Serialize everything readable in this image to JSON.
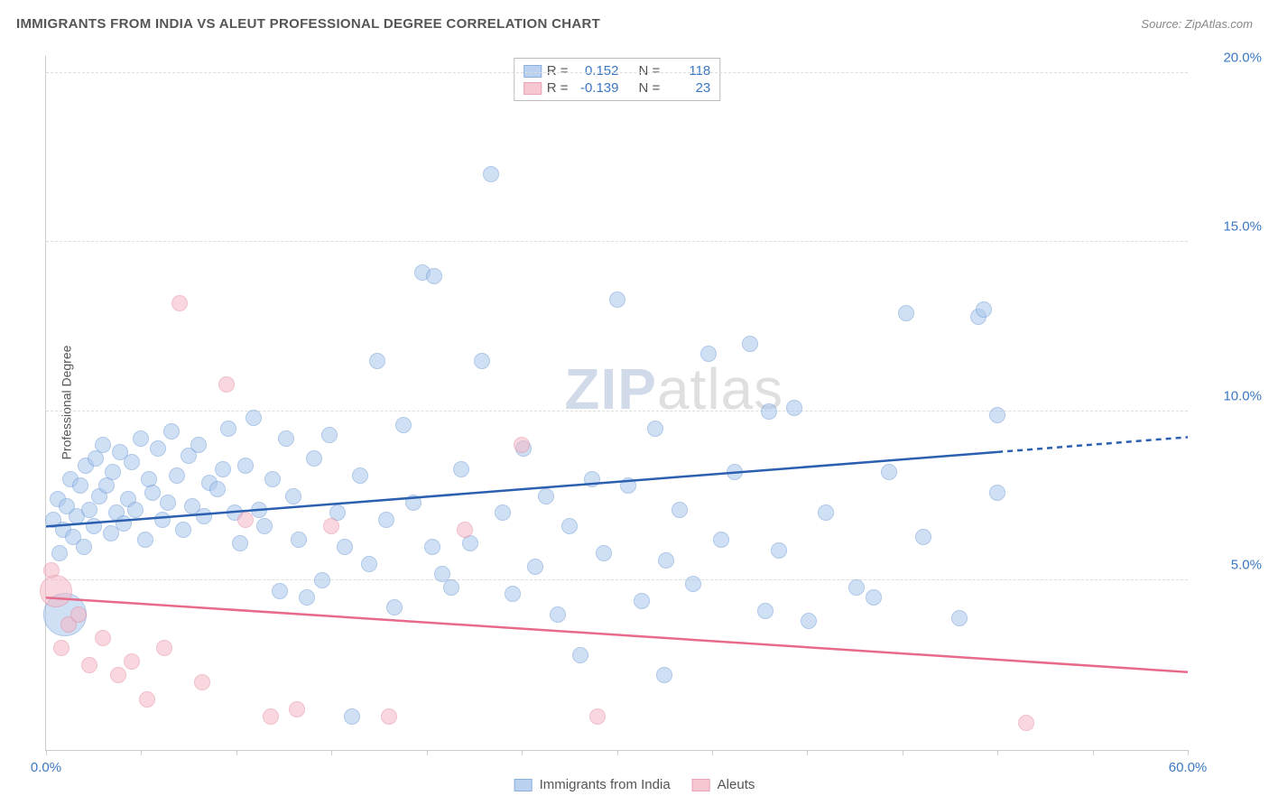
{
  "title": "IMMIGRANTS FROM INDIA VS ALEUT PROFESSIONAL DEGREE CORRELATION CHART",
  "source_label": "Source:",
  "source_name": "ZipAtlas.com",
  "y_axis_label": "Professional Degree",
  "watermark_zip": "ZIP",
  "watermark_atlas": "atlas",
  "chart": {
    "type": "scatter",
    "xlim": [
      0,
      60
    ],
    "ylim": [
      0,
      20.5
    ],
    "x_ticks": [
      0,
      5,
      10,
      15,
      20,
      25,
      30,
      35,
      40,
      45,
      50,
      55,
      60
    ],
    "x_tick_labels": {
      "0": "0.0%",
      "60": "60.0%"
    },
    "y_ticks": [
      5,
      10,
      15,
      20
    ],
    "y_tick_labels": {
      "5": "5.0%",
      "10": "10.0%",
      "15": "15.0%",
      "20": "20.0%"
    },
    "background_color": "#ffffff",
    "grid_color": "#dddddd",
    "axis_color": "#cccccc",
    "tick_label_color": "#3b78c4",
    "axis_label_color": "#555555",
    "series": [
      {
        "key": "india",
        "label": "Immigrants from India",
        "fill": "#a9c7ec",
        "fill_opacity": 0.55,
        "stroke": "#6e9bd6",
        "line_color": "#2b5fb0",
        "R": "0.152",
        "N": "118",
        "marker_radius": 9,
        "trend": {
          "x0": 0,
          "y0": 6.6,
          "x1": 50,
          "y1": 8.8,
          "x_dash_to": 60
        },
        "points": [
          [
            0.4,
            6.8
          ],
          [
            0.6,
            7.4
          ],
          [
            0.7,
            5.8
          ],
          [
            0.9,
            6.5
          ],
          [
            1.0,
            4.0,
            24
          ],
          [
            1.1,
            7.2
          ],
          [
            1.3,
            8.0
          ],
          [
            1.4,
            6.3
          ],
          [
            1.6,
            6.9
          ],
          [
            1.8,
            7.8
          ],
          [
            2.0,
            6.0
          ],
          [
            2.1,
            8.4
          ],
          [
            2.3,
            7.1
          ],
          [
            2.5,
            6.6
          ],
          [
            2.6,
            8.6
          ],
          [
            2.8,
            7.5
          ],
          [
            3.0,
            9.0
          ],
          [
            3.2,
            7.8
          ],
          [
            3.4,
            6.4
          ],
          [
            3.5,
            8.2
          ],
          [
            3.7,
            7.0
          ],
          [
            3.9,
            8.8
          ],
          [
            4.1,
            6.7
          ],
          [
            4.3,
            7.4
          ],
          [
            4.5,
            8.5
          ],
          [
            4.7,
            7.1
          ],
          [
            5.0,
            9.2
          ],
          [
            5.2,
            6.2
          ],
          [
            5.4,
            8.0
          ],
          [
            5.6,
            7.6
          ],
          [
            5.9,
            8.9
          ],
          [
            6.1,
            6.8
          ],
          [
            6.4,
            7.3
          ],
          [
            6.6,
            9.4
          ],
          [
            6.9,
            8.1
          ],
          [
            7.2,
            6.5
          ],
          [
            7.5,
            8.7
          ],
          [
            7.7,
            7.2
          ],
          [
            8.0,
            9.0
          ],
          [
            8.3,
            6.9
          ],
          [
            8.6,
            7.9
          ],
          [
            9.0,
            7.7
          ],
          [
            9.3,
            8.3
          ],
          [
            9.6,
            9.5
          ],
          [
            9.9,
            7.0
          ],
          [
            10.2,
            6.1
          ],
          [
            10.5,
            8.4
          ],
          [
            10.9,
            9.8
          ],
          [
            11.2,
            7.1
          ],
          [
            11.5,
            6.6
          ],
          [
            11.9,
            8.0
          ],
          [
            12.3,
            4.7
          ],
          [
            12.6,
            9.2
          ],
          [
            13.0,
            7.5
          ],
          [
            13.3,
            6.2
          ],
          [
            13.7,
            4.5
          ],
          [
            14.1,
            8.6
          ],
          [
            14.5,
            5.0
          ],
          [
            14.9,
            9.3
          ],
          [
            15.3,
            7.0
          ],
          [
            15.7,
            6.0
          ],
          [
            16.1,
            1.0
          ],
          [
            16.5,
            8.1
          ],
          [
            17.0,
            5.5
          ],
          [
            17.4,
            11.5
          ],
          [
            17.9,
            6.8
          ],
          [
            18.3,
            4.2
          ],
          [
            18.8,
            9.6
          ],
          [
            19.3,
            7.3
          ],
          [
            19.8,
            14.1
          ],
          [
            20.3,
            6.0
          ],
          [
            20.4,
            14.0
          ],
          [
            20.8,
            5.2
          ],
          [
            21.3,
            4.8
          ],
          [
            21.8,
            8.3
          ],
          [
            22.3,
            6.1
          ],
          [
            22.9,
            11.5
          ],
          [
            23.4,
            17.0
          ],
          [
            24.0,
            7.0
          ],
          [
            24.5,
            4.6
          ],
          [
            25.1,
            8.9
          ],
          [
            25.7,
            5.4
          ],
          [
            26.3,
            7.5
          ],
          [
            26.9,
            4.0
          ],
          [
            27.5,
            6.6
          ],
          [
            28.1,
            2.8
          ],
          [
            28.7,
            8.0
          ],
          [
            29.3,
            5.8
          ],
          [
            30.0,
            13.3
          ],
          [
            30.6,
            7.8
          ],
          [
            31.3,
            4.4
          ],
          [
            32.0,
            9.5
          ],
          [
            32.6,
            5.6
          ],
          [
            33.3,
            7.1
          ],
          [
            34.0,
            4.9
          ],
          [
            34.8,
            11.7
          ],
          [
            35.5,
            6.2
          ],
          [
            36.2,
            8.2
          ],
          [
            37.0,
            12.0
          ],
          [
            37.8,
            4.1
          ],
          [
            38.5,
            5.9
          ],
          [
            39.3,
            10.1
          ],
          [
            40.1,
            3.8
          ],
          [
            32.5,
            2.2
          ],
          [
            41.0,
            7.0
          ],
          [
            42.6,
            4.8
          ],
          [
            43.5,
            4.5
          ],
          [
            44.3,
            8.2
          ],
          [
            45.2,
            12.9
          ],
          [
            46.1,
            6.3
          ],
          [
            38.0,
            10.0
          ],
          [
            48.0,
            3.9
          ],
          [
            49.0,
            12.8
          ],
          [
            49.3,
            13.0
          ],
          [
            50.0,
            9.9
          ],
          [
            50.0,
            7.6
          ]
        ]
      },
      {
        "key": "aleuts",
        "label": "Aleuts",
        "fill": "#f4b8c6",
        "fill_opacity": 0.55,
        "stroke": "#e48aa2",
        "line_color": "#e86a8b",
        "R": "-0.139",
        "N": "23",
        "marker_radius": 9,
        "trend": {
          "x0": 0,
          "y0": 4.5,
          "x1": 60,
          "y1": 2.3
        },
        "points": [
          [
            0.3,
            5.3
          ],
          [
            0.5,
            4.7,
            18
          ],
          [
            0.8,
            3.0
          ],
          [
            1.2,
            3.7
          ],
          [
            1.7,
            4.0
          ],
          [
            2.3,
            2.5
          ],
          [
            3.0,
            3.3
          ],
          [
            3.8,
            2.2
          ],
          [
            4.5,
            2.6
          ],
          [
            5.3,
            1.5
          ],
          [
            6.2,
            3.0
          ],
          [
            7.0,
            13.2
          ],
          [
            8.2,
            2.0
          ],
          [
            9.5,
            10.8
          ],
          [
            10.5,
            6.8
          ],
          [
            11.8,
            1.0
          ],
          [
            13.2,
            1.2
          ],
          [
            15.0,
            6.6
          ],
          [
            18.0,
            1.0
          ],
          [
            22.0,
            6.5
          ],
          [
            25.0,
            9.0
          ],
          [
            29.0,
            1.0
          ],
          [
            51.5,
            0.8
          ]
        ]
      }
    ]
  },
  "legend_top": {
    "r_label": "R =",
    "n_label": "N ="
  },
  "legend_bottom": [
    {
      "swatch_fill": "#a9c7ec",
      "swatch_stroke": "#6e9bd6",
      "label_key": "chart.series.0.label"
    },
    {
      "swatch_fill": "#f4b8c6",
      "swatch_stroke": "#e48aa2",
      "label_key": "chart.series.1.label"
    }
  ]
}
